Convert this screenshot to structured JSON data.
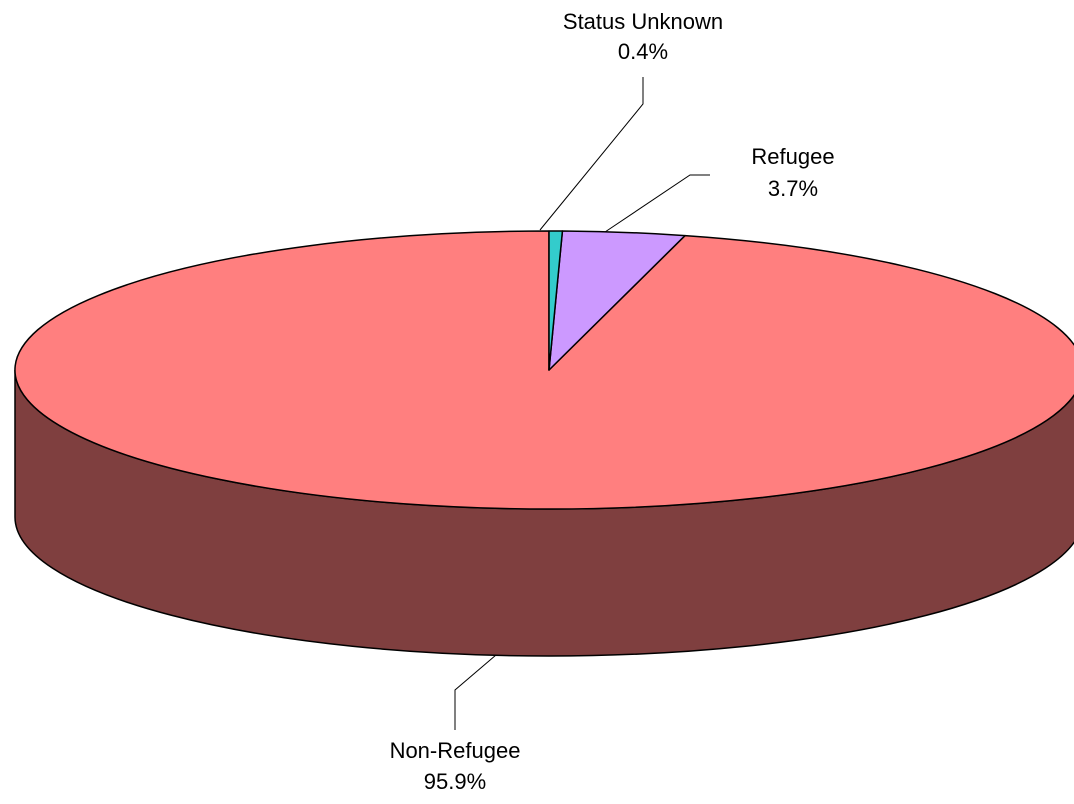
{
  "chart_data": {
    "type": "pie",
    "style": "3d",
    "title": "",
    "slices": [
      {
        "name": "Non-Refugee",
        "value": 95.9,
        "pct_label": "95.9%",
        "color": "#ff7f7f",
        "side_color": "#7f3f3f"
      },
      {
        "name": "Refugee",
        "value": 3.7,
        "pct_label": "3.7%",
        "color": "#cc99ff",
        "side_color": "#664c7f"
      },
      {
        "name": "Status Unknown",
        "value": 0.4,
        "pct_label": "0.4%",
        "color": "#33cccc",
        "side_color": "#196666"
      }
    ],
    "legend": "none"
  }
}
